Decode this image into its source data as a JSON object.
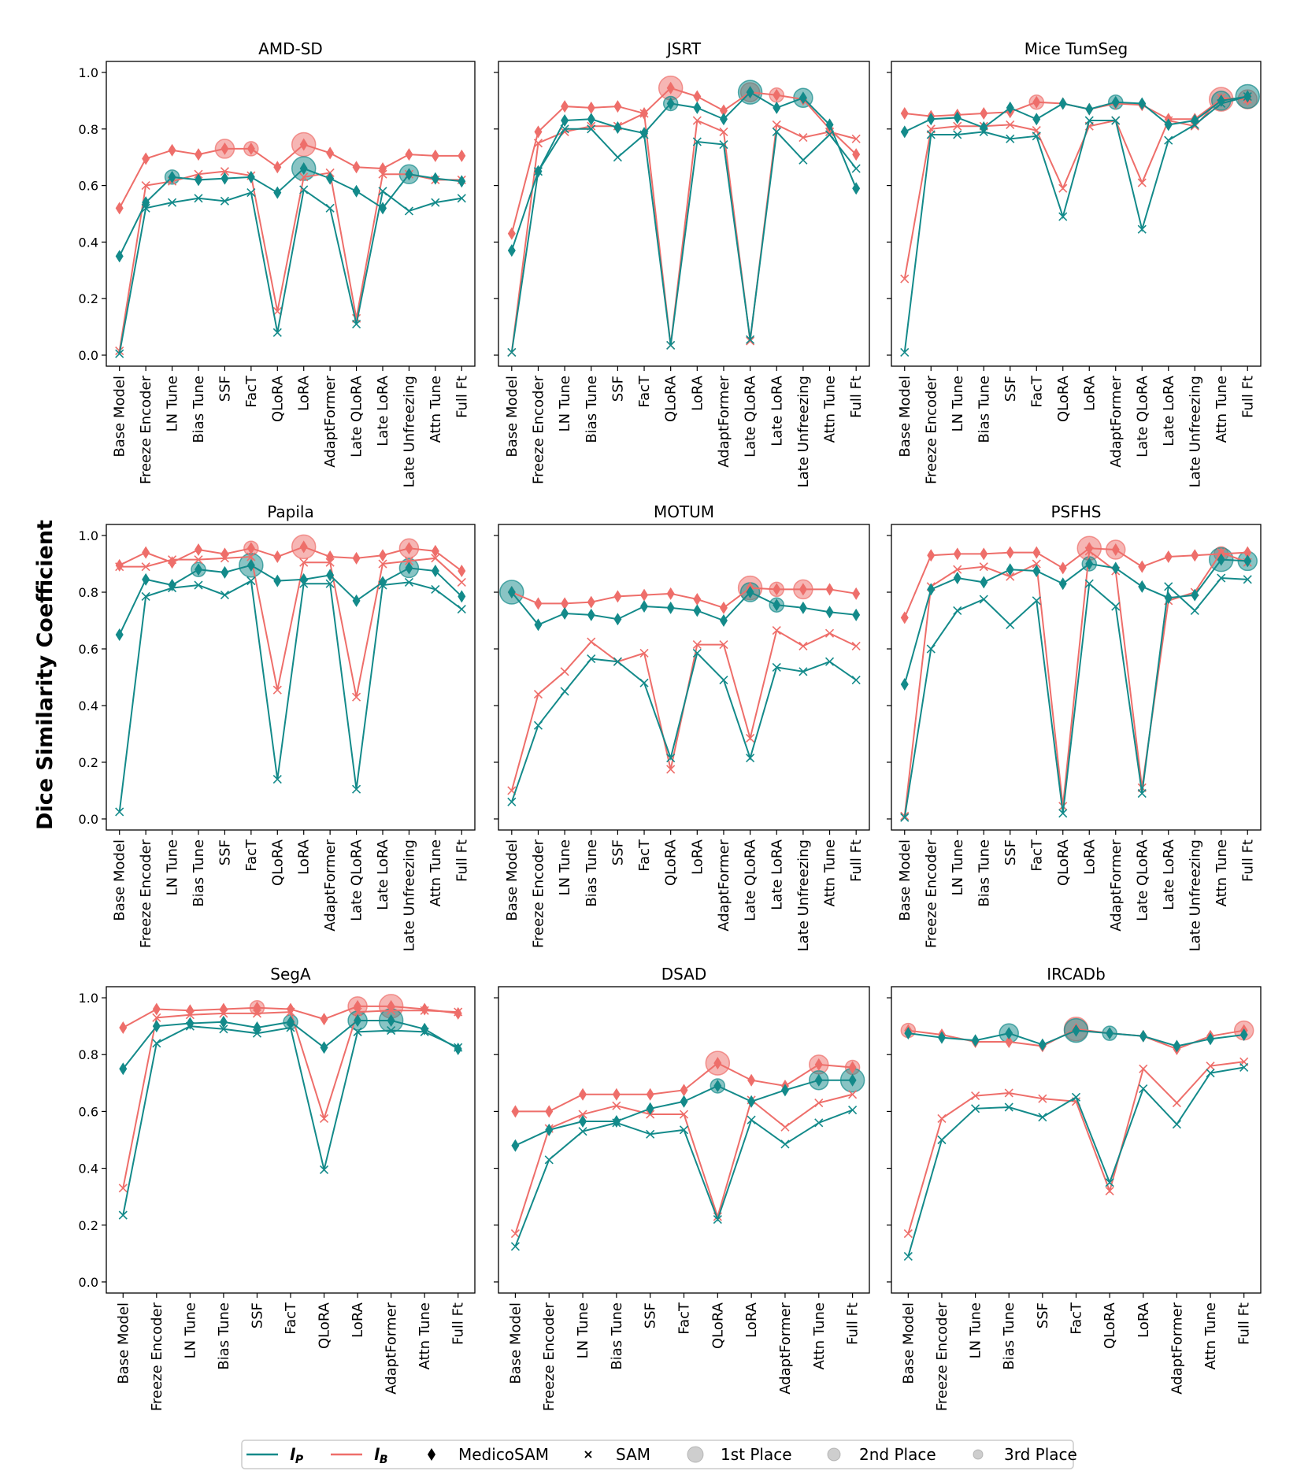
{
  "figure": {
    "ylabel": "Dice Similarity Coefficient",
    "yticks": [
      "0.0",
      "0.2",
      "0.4",
      "0.6",
      "0.8",
      "1.0"
    ],
    "colors": {
      "lp": "#138a8a",
      "lb": "#ee6e6a"
    },
    "legend": {
      "lp_label": "l",
      "lp_sub": "P",
      "lb_label": "l",
      "lb_sub": "B",
      "medicosam": "MedicoSAM",
      "sam": "SAM",
      "first": "1st Place",
      "second": "2nd Place",
      "third": "3rd Place"
    }
  },
  "chart_data": [
    {
      "type": "line",
      "title": "AMD-SD",
      "ylim": [
        0,
        1
      ],
      "categories": [
        "Base Model",
        "Freeze Encoder",
        "LN Tune",
        "Bias Tune",
        "SSF",
        "FacT",
        "QLoRA",
        "LoRA",
        "AdaptFormer",
        "Late QLoRA",
        "Late LoRA",
        "Late Unfreezing",
        "Attn Tune",
        "Full Ft"
      ],
      "series": [
        {
          "name": "lP MedicoSAM",
          "values": [
            0.35,
            0.54,
            0.63,
            0.62,
            0.625,
            0.63,
            0.575,
            0.66,
            0.625,
            0.58,
            0.52,
            0.64,
            0.625,
            0.615
          ]
        },
        {
          "name": "lP SAM",
          "values": [
            0.005,
            0.52,
            0.54,
            0.555,
            0.545,
            0.575,
            0.08,
            0.585,
            0.52,
            0.11,
            0.58,
            0.51,
            0.54,
            0.555
          ]
        },
        {
          "name": "lB MedicoSAM",
          "values": [
            0.52,
            0.695,
            0.725,
            0.71,
            0.73,
            0.73,
            0.665,
            0.745,
            0.715,
            0.665,
            0.66,
            0.71,
            0.705,
            0.705
          ]
        },
        {
          "name": "lB SAM",
          "values": [
            0.015,
            0.6,
            0.615,
            0.64,
            0.65,
            0.635,
            0.155,
            0.63,
            0.645,
            0.13,
            0.64,
            0.64,
            0.62,
            0.62
          ]
        }
      ],
      "ranks_lp": [
        [
          7,
          1
        ],
        [
          11,
          2
        ],
        [
          2,
          3
        ]
      ],
      "ranks_lb": [
        [
          7,
          1
        ],
        [
          4,
          2
        ],
        [
          5,
          3
        ]
      ]
    },
    {
      "type": "line",
      "title": "JSRT",
      "ylim": [
        0,
        1
      ],
      "categories": [
        "Base Model",
        "Freeze Encoder",
        "LN Tune",
        "Bias Tune",
        "SSF",
        "FacT",
        "QLoRA",
        "LoRA",
        "AdaptFormer",
        "Late QLoRA",
        "Late LoRA",
        "Late Unfreezing",
        "Attn Tune",
        "Full Ft"
      ],
      "series": [
        {
          "name": "lP MedicoSAM",
          "values": [
            0.37,
            0.65,
            0.83,
            0.835,
            0.805,
            0.785,
            0.89,
            0.875,
            0.835,
            0.93,
            0.875,
            0.91,
            0.815,
            0.59
          ]
        },
        {
          "name": "lP SAM",
          "values": [
            0.01,
            0.65,
            0.8,
            0.8,
            0.7,
            0.78,
            0.035,
            0.755,
            0.745,
            0.055,
            0.79,
            0.69,
            0.78,
            0.66
          ]
        },
        {
          "name": "lB MedicoSAM",
          "values": [
            0.43,
            0.79,
            0.88,
            0.875,
            0.88,
            0.855,
            0.945,
            0.915,
            0.865,
            0.93,
            0.92,
            0.905,
            0.8,
            0.71
          ]
        },
        {
          "name": "lB SAM",
          "values": [
            0.01,
            0.75,
            0.79,
            0.81,
            0.81,
            0.855,
            0.035,
            0.83,
            0.79,
            0.05,
            0.815,
            0.77,
            0.79,
            0.765
          ]
        }
      ],
      "ranks_lp": [
        [
          9,
          1
        ],
        [
          11,
          2
        ],
        [
          6,
          3
        ]
      ],
      "ranks_lb": [
        [
          6,
          1
        ],
        [
          9,
          2
        ],
        [
          10,
          3
        ]
      ]
    },
    {
      "type": "line",
      "title": "Mice TumSeg",
      "ylim": [
        0,
        1
      ],
      "categories": [
        "Base Model",
        "Freeze Encoder",
        "LN Tune",
        "Bias Tune",
        "SSF",
        "FacT",
        "QLoRA",
        "LoRA",
        "AdaptFormer",
        "Late QLoRA",
        "Late LoRA",
        "Late Unfreezing",
        "Attn Tune",
        "Full Ft"
      ],
      "series": [
        {
          "name": "lP MedicoSAM",
          "values": [
            0.79,
            0.835,
            0.84,
            0.805,
            0.875,
            0.835,
            0.89,
            0.87,
            0.895,
            0.89,
            0.815,
            0.83,
            0.9,
            0.915
          ]
        },
        {
          "name": "lP SAM",
          "values": [
            0.01,
            0.78,
            0.78,
            0.79,
            0.765,
            0.775,
            0.49,
            0.83,
            0.83,
            0.445,
            0.76,
            0.815,
            0.89,
            0.915
          ]
        },
        {
          "name": "lB MedicoSAM",
          "values": [
            0.855,
            0.845,
            0.85,
            0.855,
            0.86,
            0.895,
            0.89,
            0.87,
            0.89,
            0.885,
            0.835,
            0.835,
            0.905,
            0.905
          ]
        },
        {
          "name": "lB SAM",
          "values": [
            0.27,
            0.8,
            0.81,
            0.81,
            0.815,
            0.795,
            0.59,
            0.81,
            0.83,
            0.61,
            0.83,
            0.81,
            0.91,
            0.905
          ]
        }
      ],
      "ranks_lp": [
        [
          13,
          1
        ],
        [
          12,
          2
        ],
        [
          8,
          3
        ]
      ],
      "ranks_lb": [
        [
          12,
          1
        ],
        [
          13,
          2
        ],
        [
          5,
          3
        ]
      ]
    },
    {
      "type": "line",
      "title": "Papila",
      "ylim": [
        0,
        1
      ],
      "categories": [
        "Base Model",
        "Freeze Encoder",
        "LN Tune",
        "Bias Tune",
        "SSF",
        "FacT",
        "QLoRA",
        "LoRA",
        "AdaptFormer",
        "Late QLoRA",
        "Late LoRA",
        "Late Unfreezing",
        "Attn Tune",
        "Full Ft"
      ],
      "series": [
        {
          "name": "lP MedicoSAM",
          "values": [
            0.65,
            0.845,
            0.825,
            0.88,
            0.87,
            0.895,
            0.84,
            0.845,
            0.86,
            0.77,
            0.835,
            0.885,
            0.875,
            0.785
          ]
        },
        {
          "name": "lP SAM",
          "values": [
            0.025,
            0.785,
            0.815,
            0.825,
            0.79,
            0.84,
            0.14,
            0.83,
            0.83,
            0.105,
            0.825,
            0.835,
            0.81,
            0.74
          ]
        },
        {
          "name": "lB MedicoSAM",
          "values": [
            0.895,
            0.94,
            0.905,
            0.95,
            0.935,
            0.955,
            0.925,
            0.96,
            0.925,
            0.92,
            0.93,
            0.955,
            0.945,
            0.875
          ]
        },
        {
          "name": "lB SAM",
          "values": [
            0.89,
            0.89,
            0.915,
            0.915,
            0.92,
            0.925,
            0.455,
            0.905,
            0.905,
            0.43,
            0.9,
            0.91,
            0.92,
            0.835
          ]
        }
      ],
      "ranks_lp": [
        [
          5,
          1
        ],
        [
          11,
          2
        ],
        [
          3,
          3
        ]
      ],
      "ranks_lb": [
        [
          7,
          1
        ],
        [
          11,
          2
        ],
        [
          5,
          3
        ]
      ]
    },
    {
      "type": "line",
      "title": "MOTUM",
      "ylim": [
        0,
        1
      ],
      "categories": [
        "Base Model",
        "Freeze Encoder",
        "LN Tune",
        "Bias Tune",
        "SSF",
        "FacT",
        "QLoRA",
        "LoRA",
        "AdaptFormer",
        "Late QLoRA",
        "Late LoRA",
        "Late Unfreezing",
        "Attn Tune",
        "Full Ft"
      ],
      "series": [
        {
          "name": "lP MedicoSAM",
          "values": [
            0.8,
            0.685,
            0.725,
            0.72,
            0.705,
            0.75,
            0.745,
            0.735,
            0.7,
            0.8,
            0.755,
            0.745,
            0.73,
            0.72
          ]
        },
        {
          "name": "lP SAM",
          "values": [
            0.06,
            0.33,
            0.45,
            0.565,
            0.555,
            0.48,
            0.215,
            0.585,
            0.49,
            0.215,
            0.535,
            0.52,
            0.555,
            0.49
          ]
        },
        {
          "name": "lB MedicoSAM",
          "values": [
            0.8,
            0.76,
            0.76,
            0.765,
            0.785,
            0.79,
            0.795,
            0.775,
            0.745,
            0.815,
            0.81,
            0.81,
            0.81,
            0.795
          ]
        },
        {
          "name": "lB SAM",
          "values": [
            0.1,
            0.44,
            0.52,
            0.625,
            0.555,
            0.585,
            0.175,
            0.615,
            0.615,
            0.285,
            0.665,
            0.61,
            0.655,
            0.61
          ]
        }
      ],
      "ranks_lp": [
        [
          0,
          1
        ],
        [
          9,
          2
        ],
        [
          10,
          3
        ]
      ],
      "ranks_lb": [
        [
          9,
          1
        ],
        [
          11,
          2
        ],
        [
          10,
          3
        ]
      ]
    },
    {
      "type": "line",
      "title": "PSFHS",
      "ylim": [
        0,
        1
      ],
      "categories": [
        "Base Model",
        "Freeze Encoder",
        "LN Tune",
        "Bias Tune",
        "SSF",
        "FacT",
        "QLoRA",
        "LoRA",
        "AdaptFormer",
        "Late QLoRA",
        "Late LoRA",
        "Late Unfreezing",
        "Attn Tune",
        "Full Ft"
      ],
      "series": [
        {
          "name": "lP MedicoSAM",
          "values": [
            0.475,
            0.81,
            0.85,
            0.835,
            0.88,
            0.875,
            0.83,
            0.9,
            0.885,
            0.82,
            0.78,
            0.79,
            0.915,
            0.91
          ]
        },
        {
          "name": "lP SAM",
          "values": [
            0.005,
            0.6,
            0.735,
            0.775,
            0.685,
            0.77,
            0.02,
            0.83,
            0.75,
            0.09,
            0.82,
            0.735,
            0.85,
            0.845
          ]
        },
        {
          "name": "lB MedicoSAM",
          "values": [
            0.71,
            0.93,
            0.935,
            0.935,
            0.94,
            0.94,
            0.885,
            0.955,
            0.95,
            0.89,
            0.925,
            0.93,
            0.935,
            0.94
          ]
        },
        {
          "name": "lB SAM",
          "values": [
            0.01,
            0.82,
            0.88,
            0.89,
            0.855,
            0.9,
            0.045,
            0.945,
            0.875,
            0.11,
            0.77,
            0.8,
            0.94,
            0.905
          ]
        }
      ],
      "ranks_lp": [
        [
          12,
          1
        ],
        [
          13,
          2
        ],
        [
          7,
          3
        ]
      ],
      "ranks_lb": [
        [
          7,
          1
        ],
        [
          8,
          2
        ],
        [
          12,
          3
        ]
      ]
    },
    {
      "type": "line",
      "title": "SegA",
      "ylim": [
        0,
        1
      ],
      "categories": [
        "Base Model",
        "Freeze Encoder",
        "LN Tune",
        "Bias Tune",
        "SSF",
        "FacT",
        "QLoRA",
        "LoRA",
        "AdaptFormer",
        "Attn Tune",
        "Full Ft"
      ],
      "series": [
        {
          "name": "lP MedicoSAM",
          "values": [
            0.75,
            0.9,
            0.91,
            0.915,
            0.895,
            0.915,
            0.825,
            0.92,
            0.92,
            0.89,
            0.82
          ]
        },
        {
          "name": "lP SAM",
          "values": [
            0.235,
            0.84,
            0.9,
            0.89,
            0.875,
            0.895,
            0.395,
            0.88,
            0.885,
            0.88,
            0.825
          ]
        },
        {
          "name": "lB MedicoSAM",
          "values": [
            0.895,
            0.96,
            0.955,
            0.96,
            0.965,
            0.96,
            0.925,
            0.97,
            0.97,
            0.96,
            0.945
          ]
        },
        {
          "name": "lB SAM",
          "values": [
            0.33,
            0.93,
            0.94,
            0.945,
            0.945,
            0.95,
            0.575,
            0.95,
            0.955,
            0.955,
            0.95
          ]
        }
      ],
      "ranks_lp": [
        [
          8,
          1
        ],
        [
          7,
          2
        ],
        [
          5,
          3
        ]
      ],
      "ranks_lb": [
        [
          8,
          1
        ],
        [
          7,
          2
        ],
        [
          4,
          3
        ]
      ]
    },
    {
      "type": "line",
      "title": "DSAD",
      "ylim": [
        0,
        1
      ],
      "categories": [
        "Base Model",
        "Freeze Encoder",
        "LN Tune",
        "Bias Tune",
        "SSF",
        "FacT",
        "QLoRA",
        "LoRA",
        "AdaptFormer",
        "Attn Tune",
        "Full Ft"
      ],
      "series": [
        {
          "name": "lP MedicoSAM",
          "values": [
            0.48,
            0.535,
            0.565,
            0.565,
            0.61,
            0.635,
            0.69,
            0.635,
            0.675,
            0.71,
            0.71
          ]
        },
        {
          "name": "lP SAM",
          "values": [
            0.125,
            0.43,
            0.53,
            0.56,
            0.52,
            0.535,
            0.22,
            0.57,
            0.485,
            0.56,
            0.605
          ]
        },
        {
          "name": "lB MedicoSAM",
          "values": [
            0.6,
            0.6,
            0.66,
            0.66,
            0.66,
            0.675,
            0.77,
            0.71,
            0.69,
            0.765,
            0.755
          ]
        },
        {
          "name": "lB SAM",
          "values": [
            0.17,
            0.54,
            0.59,
            0.62,
            0.59,
            0.59,
            0.23,
            0.64,
            0.545,
            0.63,
            0.66
          ]
        }
      ],
      "ranks_lp": [
        [
          10,
          1
        ],
        [
          9,
          2
        ],
        [
          6,
          3
        ]
      ],
      "ranks_lb": [
        [
          6,
          1
        ],
        [
          9,
          2
        ],
        [
          10,
          3
        ]
      ]
    },
    {
      "type": "line",
      "title": "IRCADb",
      "ylim": [
        0,
        1
      ],
      "categories": [
        "Base Model",
        "Freeze Encoder",
        "LN Tune",
        "Bias Tune",
        "SSF",
        "FacT",
        "QLoRA",
        "LoRA",
        "AdaptFormer",
        "Attn Tune",
        "Full Ft"
      ],
      "series": [
        {
          "name": "lP MedicoSAM",
          "values": [
            0.875,
            0.86,
            0.85,
            0.875,
            0.835,
            0.885,
            0.875,
            0.865,
            0.83,
            0.855,
            0.87
          ]
        },
        {
          "name": "lP SAM",
          "values": [
            0.09,
            0.5,
            0.61,
            0.615,
            0.58,
            0.65,
            0.35,
            0.68,
            0.555,
            0.735,
            0.755
          ]
        },
        {
          "name": "lB MedicoSAM",
          "values": [
            0.885,
            0.87,
            0.845,
            0.845,
            0.83,
            0.89,
            0.875,
            0.865,
            0.82,
            0.865,
            0.885
          ]
        },
        {
          "name": "lB SAM",
          "values": [
            0.17,
            0.575,
            0.655,
            0.665,
            0.645,
            0.635,
            0.32,
            0.75,
            0.63,
            0.76,
            0.775
          ]
        }
      ],
      "ranks_lp": [
        [
          5,
          1
        ],
        [
          3,
          2
        ],
        [
          6,
          3
        ]
      ],
      "ranks_lb": [
        [
          5,
          1
        ],
        [
          10,
          2
        ],
        [
          0,
          3
        ]
      ]
    }
  ]
}
